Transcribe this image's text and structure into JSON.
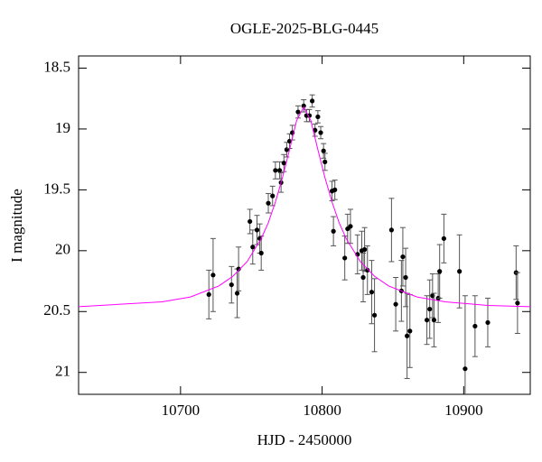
{
  "chart_data": {
    "type": "scatter",
    "title": "OGLE-2025-BLG-0445",
    "x_label": "HJD - 2450000",
    "y_label": "I magnitude",
    "xlim": [
      10628,
      10947
    ],
    "ylim": [
      18.4,
      21.18
    ],
    "y_inverted": true,
    "xticks": [
      10700,
      10800,
      10900
    ],
    "yticks": [
      18.5,
      19,
      19.5,
      20,
      20.5,
      21
    ],
    "grid": false,
    "series": [
      {
        "mode": "markers",
        "color": "#000000",
        "x": [
          10720,
          10723,
          10736,
          10740,
          10741,
          10749,
          10751,
          10754,
          10756,
          10757,
          10762,
          10765,
          10767,
          10770,
          10771,
          10773,
          10775,
          10777,
          10779,
          10783,
          10787,
          10789,
          10791,
          10793,
          10795,
          10797,
          10799,
          10801,
          10802,
          10807,
          10809,
          10808,
          10816,
          10818,
          10820,
          10825,
          10828,
          10829,
          10830,
          10832,
          10835,
          10837,
          10849,
          10852,
          10856,
          10857,
          10859,
          10860,
          10862,
          10874,
          10876,
          10878,
          10879,
          10882,
          10883,
          10886,
          10897,
          10901,
          10908,
          10917,
          10937,
          10938
        ],
        "values": [
          20.36,
          20.2,
          20.28,
          20.35,
          20.15,
          19.76,
          19.97,
          19.83,
          19.9,
          20.02,
          19.61,
          19.55,
          19.34,
          19.34,
          19.44,
          19.28,
          19.17,
          19.1,
          19.03,
          18.86,
          18.81,
          18.89,
          18.89,
          18.77,
          19.01,
          18.9,
          19.03,
          19.18,
          19.27,
          19.51,
          19.5,
          19.84,
          20.06,
          19.82,
          19.8,
          20.03,
          20.0,
          20.22,
          19.99,
          20.16,
          20.34,
          20.53,
          19.83,
          20.44,
          20.33,
          20.05,
          20.22,
          20.7,
          20.66,
          20.57,
          20.48,
          20.37,
          20.57,
          20.39,
          20.17,
          19.9,
          20.17,
          20.97,
          20.62,
          20.59,
          20.18,
          20.43
        ],
        "errors": [
          0.2,
          0.3,
          0.15,
          0.2,
          0.18,
          0.1,
          0.14,
          0.12,
          0.12,
          0.14,
          0.08,
          0.08,
          0.07,
          0.07,
          0.08,
          0.07,
          0.06,
          0.06,
          0.06,
          0.05,
          0.05,
          0.05,
          0.05,
          0.05,
          0.05,
          0.05,
          0.05,
          0.06,
          0.07,
          0.08,
          0.08,
          0.12,
          0.18,
          0.12,
          0.14,
          0.16,
          0.16,
          0.2,
          0.18,
          0.2,
          0.26,
          0.3,
          0.26,
          0.22,
          0.25,
          0.24,
          0.24,
          0.35,
          0.3,
          0.2,
          0.24,
          0.18,
          0.22,
          0.2,
          0.22,
          0.2,
          0.3,
          0.6,
          0.25,
          0.2,
          0.22,
          0.25
        ]
      },
      {
        "mode": "lines",
        "color": "#ff00ff",
        "x": [
          10628,
          10687,
          10707,
          10727,
          10737,
          10747,
          10757,
          10762,
          10767,
          10772,
          10777,
          10782,
          10787,
          10792,
          10797,
          10802,
          10807,
          10812,
          10817,
          10827,
          10837,
          10847,
          10867,
          10887,
          10917,
          10947
        ],
        "values": [
          20.46,
          20.42,
          20.38,
          20.29,
          20.21,
          20.09,
          19.9,
          19.77,
          19.6,
          19.4,
          19.17,
          18.93,
          18.82,
          18.93,
          19.17,
          19.4,
          19.6,
          19.77,
          19.9,
          20.09,
          20.21,
          20.29,
          20.38,
          20.42,
          20.45,
          20.46
        ]
      }
    ]
  }
}
